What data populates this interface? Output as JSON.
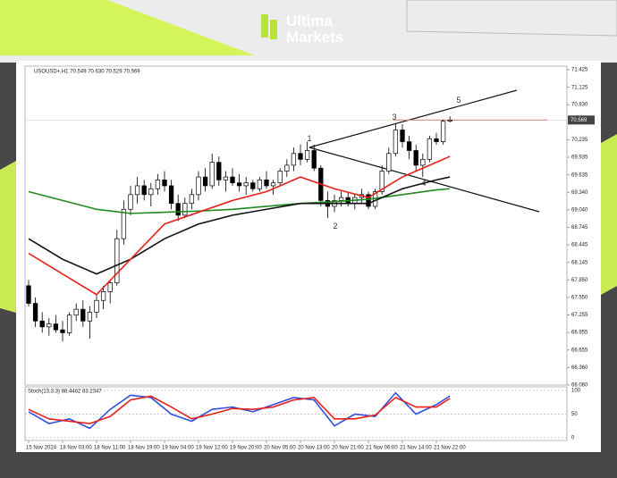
{
  "logo": {
    "line1": "Ultima",
    "line2": "Markets"
  },
  "chart_data": {
    "type": "candlestick",
    "title": "USOUSD+,H1 70.549 70.630 70.529 70.569",
    "categories": [
      "15 Nov 2024",
      null,
      null,
      null,
      null,
      "18 Nov 03:00",
      null,
      null,
      null,
      null,
      "18 Nov 11:00",
      null,
      null,
      null,
      null,
      "18 Nov 19:00",
      null,
      null,
      null,
      null,
      "19 Nov 04:00",
      null,
      null,
      null,
      null,
      "19 Nov 12:00",
      null,
      null,
      null,
      null,
      "19 Nov 20:00",
      null,
      null,
      null,
      null,
      "20 Nov 05:00",
      null,
      null,
      null,
      null,
      "20 Nov 13:00",
      null,
      null,
      null,
      null,
      "20 Nov 21:00",
      null,
      null,
      null,
      null,
      "21 Nov 06:00",
      null,
      null,
      null,
      null,
      "21 Nov 14:00",
      null,
      null,
      null,
      null,
      "21 Nov 22:00",
      null,
      null
    ],
    "ohlc": [
      [
        67.75,
        67.85,
        67.4,
        67.45
      ],
      [
        67.45,
        67.55,
        67.05,
        67.15
      ],
      [
        67.15,
        67.3,
        66.95,
        67.05
      ],
      [
        67.05,
        67.2,
        66.9,
        67.1
      ],
      [
        67.1,
        67.25,
        66.95,
        67.0
      ],
      [
        67.0,
        67.15,
        66.8,
        66.95
      ],
      [
        66.95,
        67.3,
        66.9,
        67.25
      ],
      [
        67.25,
        67.45,
        67.15,
        67.35
      ],
      [
        67.35,
        67.5,
        67.05,
        67.15
      ],
      [
        67.15,
        67.4,
        66.85,
        67.3
      ],
      [
        67.3,
        67.6,
        67.2,
        67.5
      ],
      [
        67.5,
        67.75,
        67.35,
        67.65
      ],
      [
        67.65,
        67.85,
        67.45,
        67.8
      ],
      [
        67.8,
        68.7,
        67.75,
        68.55
      ],
      [
        68.55,
        69.2,
        68.45,
        69.05
      ],
      [
        69.05,
        69.45,
        68.95,
        69.3
      ],
      [
        69.3,
        69.6,
        69.15,
        69.45
      ],
      [
        69.45,
        69.55,
        69.2,
        69.3
      ],
      [
        69.3,
        69.5,
        69.1,
        69.4
      ],
      [
        69.4,
        69.65,
        69.3,
        69.55
      ],
      [
        69.55,
        69.7,
        69.35,
        69.45
      ],
      [
        69.45,
        69.55,
        69.05,
        69.15
      ],
      [
        69.15,
        69.3,
        68.85,
        68.95
      ],
      [
        68.95,
        69.25,
        68.9,
        69.15
      ],
      [
        69.15,
        69.4,
        69.05,
        69.3
      ],
      [
        69.3,
        69.7,
        69.2,
        69.6
      ],
      [
        69.6,
        69.75,
        69.35,
        69.45
      ],
      [
        69.45,
        70.0,
        69.4,
        69.85
      ],
      [
        69.85,
        69.95,
        69.45,
        69.55
      ],
      [
        69.55,
        69.7,
        69.35,
        69.6
      ],
      [
        69.6,
        69.75,
        69.45,
        69.5
      ],
      [
        69.5,
        69.65,
        69.35,
        69.45
      ],
      [
        69.45,
        69.6,
        69.3,
        69.5
      ],
      [
        69.5,
        69.55,
        69.35,
        69.4
      ],
      [
        69.4,
        69.6,
        69.35,
        69.55
      ],
      [
        69.55,
        69.7,
        69.4,
        69.45
      ],
      [
        69.45,
        69.55,
        69.3,
        69.5
      ],
      [
        69.5,
        69.75,
        69.45,
        69.7
      ],
      [
        69.7,
        69.9,
        69.6,
        69.8
      ],
      [
        69.8,
        70.1,
        69.7,
        70.0
      ],
      [
        70.0,
        70.15,
        69.8,
        69.9
      ],
      [
        69.9,
        70.2,
        69.85,
        70.05
      ],
      [
        70.05,
        70.15,
        69.7,
        69.75
      ],
      [
        69.75,
        69.8,
        69.1,
        69.2
      ],
      [
        69.2,
        69.35,
        68.9,
        69.1
      ],
      [
        69.1,
        69.3,
        69.0,
        69.2
      ],
      [
        69.2,
        69.35,
        69.1,
        69.25
      ],
      [
        69.25,
        69.35,
        69.1,
        69.15
      ],
      [
        69.15,
        69.3,
        69.05,
        69.25
      ],
      [
        69.25,
        69.4,
        69.15,
        69.3
      ],
      [
        69.3,
        69.35,
        69.05,
        69.1
      ],
      [
        69.1,
        69.4,
        69.05,
        69.35
      ],
      [
        69.35,
        69.8,
        69.3,
        69.7
      ],
      [
        69.7,
        70.1,
        69.65,
        70.0
      ],
      [
        70.0,
        70.5,
        69.95,
        70.4
      ],
      [
        70.4,
        70.5,
        70.1,
        70.2
      ],
      [
        70.2,
        70.3,
        69.9,
        70.05
      ],
      [
        70.05,
        70.15,
        69.7,
        69.8
      ],
      [
        69.8,
        70.0,
        69.6,
        69.9
      ],
      [
        69.9,
        70.3,
        69.85,
        70.25
      ],
      [
        70.25,
        70.35,
        70.15,
        70.2
      ],
      [
        70.2,
        70.58,
        70.15,
        70.549
      ],
      [
        70.549,
        70.63,
        70.529,
        70.569
      ]
    ],
    "up_color": "#ffffff",
    "down_color": "#000000",
    "ylim": [
      66.06,
      71.425
    ],
    "yticks": [
      71.425,
      71.125,
      {
        "value": 70.83,
        "label": "70.830"
      },
      70.235,
      69.935,
      69.635,
      {
        "value": 69.34,
        "label": "69.340"
      },
      {
        "value": 69.04,
        "label": "69.040"
      },
      68.745,
      68.445,
      68.145,
      {
        "value": 67.85,
        "label": "67.850"
      },
      {
        "value": 67.55,
        "label": "67.550"
      },
      67.255,
      66.955,
      66.655,
      {
        "value": 66.36,
        "label": "66.360"
      },
      {
        "value": 66.06,
        "label": "66.060"
      }
    ],
    "current_price": 70.569,
    "current_price_color": "#e8301f",
    "annotations": [
      "1",
      "2",
      "3",
      "4",
      "5"
    ],
    "series": [
      {
        "color": "#1e8a1e",
        "x": [
          0,
          5,
          10,
          15,
          20,
          25,
          30,
          35,
          40,
          45,
          50,
          55,
          60,
          62
        ],
        "values": [
          69.35,
          69.2,
          69.05,
          68.98,
          69.0,
          69.02,
          69.05,
          69.1,
          69.15,
          69.18,
          69.22,
          69.3,
          69.38,
          69.4
        ]
      },
      {
        "color": "#111111",
        "x": [
          0,
          5,
          10,
          15,
          20,
          25,
          30,
          35,
          40,
          45,
          50,
          55,
          60,
          62
        ],
        "values": [
          68.55,
          68.2,
          67.95,
          68.2,
          68.55,
          68.8,
          68.95,
          69.05,
          69.15,
          69.15,
          69.15,
          69.4,
          69.55,
          69.6
        ]
      },
      {
        "color": "#e8201a",
        "x": [
          0,
          5,
          10,
          15,
          20,
          25,
          30,
          35,
          40,
          45,
          50,
          55,
          60,
          62
        ],
        "values": [
          68.3,
          67.95,
          67.6,
          68.2,
          68.8,
          69.0,
          69.2,
          69.35,
          69.6,
          69.4,
          69.25,
          69.6,
          69.85,
          69.95
        ]
      }
    ],
    "stochastic": {
      "title": "Stoch(13,3,3) 88.4462 83.2347",
      "ylim": [
        0,
        100
      ],
      "yticks": [
        0,
        50,
        100
      ],
      "series": [
        {
          "color": "#3050e0",
          "x": [
            0,
            3,
            6,
            9,
            12,
            15,
            18,
            21,
            24,
            27,
            30,
            33,
            36,
            39,
            42,
            45,
            48,
            51,
            54,
            57,
            60,
            62
          ],
          "values": [
            55,
            30,
            40,
            20,
            60,
            90,
            85,
            50,
            35,
            60,
            65,
            55,
            70,
            85,
            80,
            25,
            50,
            45,
            95,
            50,
            70,
            88.4462
          ]
        },
        {
          "color": "#e8201a",
          "x": [
            0,
            3,
            6,
            9,
            12,
            15,
            18,
            21,
            24,
            27,
            30,
            33,
            36,
            39,
            42,
            45,
            48,
            51,
            54,
            57,
            60,
            62
          ],
          "values": [
            60,
            40,
            35,
            30,
            45,
            80,
            88,
            65,
            40,
            50,
            62,
            60,
            65,
            80,
            85,
            40,
            40,
            48,
            85,
            65,
            65,
            83.2347
          ]
        }
      ]
    }
  }
}
